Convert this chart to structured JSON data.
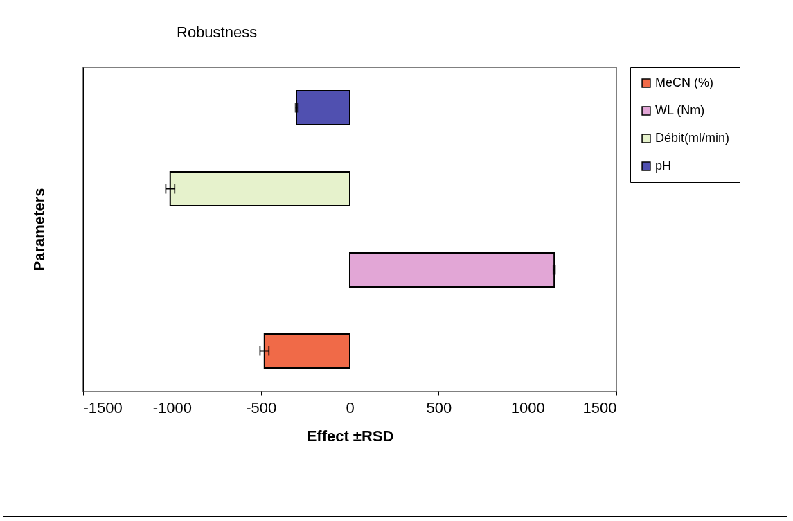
{
  "chart_data": {
    "type": "bar",
    "orientation": "horizontal",
    "title": "Robustness",
    "xlabel": "Effect ±RSD",
    "ylabel": "Parameters",
    "categories": [
      null,
      null,
      null,
      null
    ],
    "series": [
      {
        "name": "MeCN (%)",
        "color": "#f06a48",
        "values": [
          null,
          null,
          null,
          -480
        ],
        "errors": [
          null,
          null,
          null,
          25
        ]
      },
      {
        "name": "WL (Nm)",
        "color": "#e2a6d6",
        "values": [
          null,
          null,
          1150,
          null
        ],
        "errors": [
          null,
          null,
          5,
          null
        ]
      },
      {
        "name": "Débit(ml/min)",
        "color": "#e6f2cc",
        "values": [
          null,
          -1010,
          null,
          null
        ],
        "errors": [
          null,
          25,
          null,
          null
        ]
      },
      {
        "name": "pH",
        "color": "#5050b0",
        "values": [
          -300,
          null,
          null,
          null
        ],
        "errors": [
          5,
          null,
          null,
          null
        ]
      }
    ],
    "xlim": [
      -1500,
      1500
    ],
    "xticks": [
      -1500,
      -1000,
      -500,
      0,
      500,
      1000,
      1500
    ],
    "legend": "right",
    "grid": false
  }
}
